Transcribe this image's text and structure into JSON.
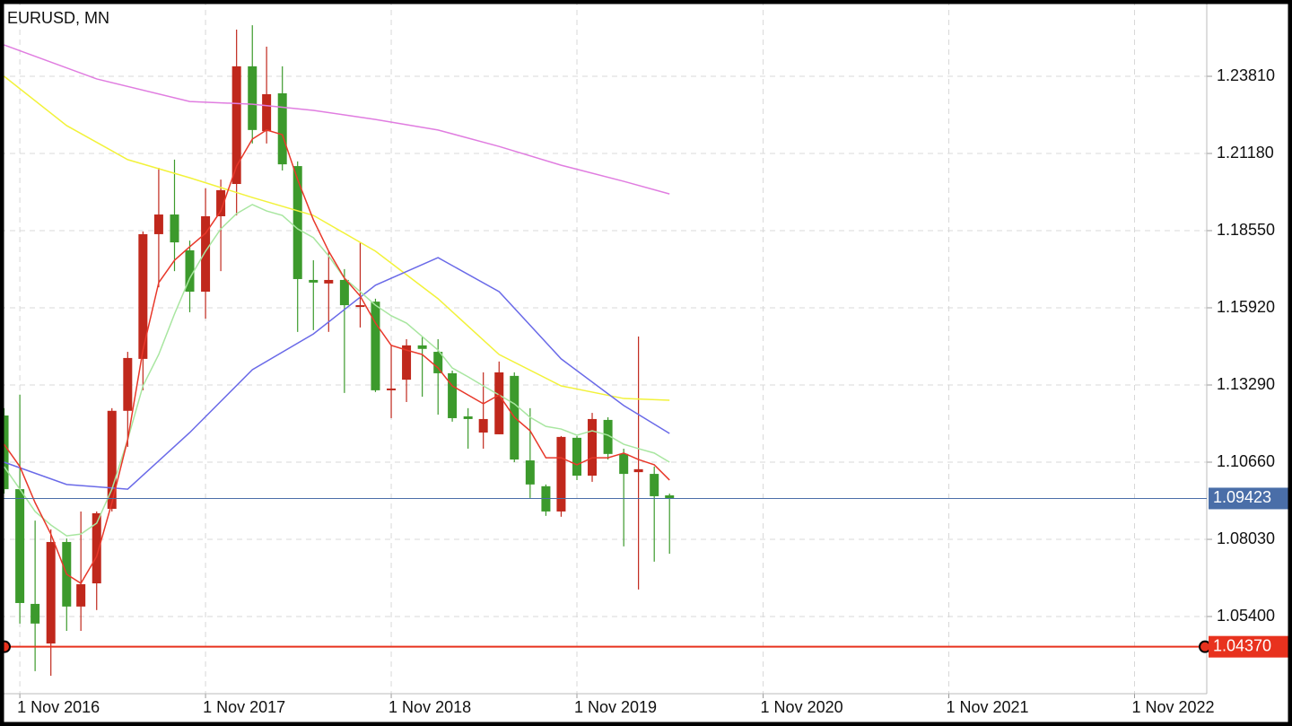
{
  "chart_data": {
    "type": "candlestick",
    "title": "EURUSD, MN",
    "x": [
      "1 Oct 2016",
      "1 Nov 2016",
      "1 Dec 2016",
      "1 Jan 2017",
      "1 Feb 2017",
      "1 Mar 2017",
      "1 Apr 2017",
      "1 May 2017",
      "1 Jun 2017",
      "1 Jul 2017",
      "1 Aug 2017",
      "1 Sep 2017",
      "1 Oct 2017",
      "1 Nov 2017",
      "1 Dec 2017",
      "1 Jan 2018",
      "1 Feb 2018",
      "1 Mar 2018",
      "1 Apr 2018",
      "1 May 2018",
      "1 Jun 2018",
      "1 Jul 2018",
      "1 Aug 2018",
      "1 Sep 2018",
      "1 Oct 2018",
      "1 Nov 2018",
      "1 Dec 2018",
      "1 Jan 2019",
      "1 Feb 2019",
      "1 Mar 2019",
      "1 Apr 2019",
      "1 May 2019",
      "1 Jun 2019",
      "1 Jul 2019",
      "1 Aug 2019",
      "1 Sep 2019",
      "1 Oct 2019",
      "1 Nov 2019",
      "1 Dec 2019",
      "1 Jan 2020",
      "1 Feb 2020",
      "1 Mar 2020",
      "1 Apr 2020",
      "1 May 2020"
    ],
    "open": [
      1.1225,
      1.0974,
      1.0583,
      1.0448,
      1.0794,
      1.0574,
      1.0653,
      1.0907,
      1.1241,
      1.1418,
      1.1843,
      1.191,
      1.1788,
      1.1647,
      1.1904,
      1.2014,
      1.2415,
      1.2194,
      1.2323,
      1.2075,
      1.1687,
      1.1675,
      1.1687,
      1.1595,
      1.1613,
      1.1311,
      1.1347,
      1.1464,
      1.1442,
      1.1369,
      1.1222,
      1.1167,
      1.1161,
      1.136,
      1.1072,
      1.0984,
      1.0898,
      1.1149,
      1.102,
      1.121,
      1.1094,
      1.1032,
      1.1026,
      1.0953
    ],
    "high": [
      1.125,
      1.1296,
      1.0867,
      1.0837,
      1.0806,
      1.0898,
      1.0898,
      1.125,
      1.1442,
      1.1852,
      1.2069,
      1.2097,
      1.1821,
      1.1999,
      1.2029,
      1.254,
      1.2555,
      1.2482,
      1.2415,
      1.2091,
      1.1754,
      1.1785,
      1.1724,
      1.1815,
      1.1623,
      1.1464,
      1.1485,
      1.1494,
      1.1485,
      1.1378,
      1.125,
      1.1372,
      1.1409,
      1.1372,
      1.125,
      1.099,
      1.1155,
      1.1155,
      1.1234,
      1.1219,
      1.1112,
      1.1494,
      1.1051,
      1.0959
    ],
    "low": [
      1.0959,
      1.0516,
      1.0354,
      1.0338,
      1.0491,
      1.0491,
      1.0562,
      1.0898,
      1.1118,
      1.1311,
      1.1662,
      1.1717,
      1.1577,
      1.1555,
      1.1717,
      1.1907,
      1.2152,
      1.2152,
      1.206,
      1.151,
      1.1516,
      1.151,
      1.1302,
      1.1525,
      1.1305,
      1.1216,
      1.1271,
      1.1289,
      1.1228,
      1.1204,
      1.1112,
      1.1112,
      1.1161,
      1.1066,
      1.0944,
      1.0883,
      1.088,
      1.1005,
      1.0999,
      1.1075,
      1.0779,
      1.0632,
      1.0727,
      1.0754
    ],
    "close": [
      1.0974,
      1.0586,
      1.0516,
      1.0794,
      1.0574,
      1.065,
      1.0892,
      1.1241,
      1.1421,
      1.1843,
      1.191,
      1.1815,
      1.1647,
      1.1904,
      1.1993,
      1.2415,
      1.2198,
      1.232,
      1.2081,
      1.169,
      1.1678,
      1.1687,
      1.1601,
      1.1601,
      1.1311,
      1.1317,
      1.1464,
      1.1452,
      1.1369,
      1.1216,
      1.1213,
      1.1213,
      1.1372,
      1.1075,
      1.099,
      1.0898,
      1.1152,
      1.102,
      1.1213,
      1.1094,
      1.1026,
      1.1042,
      1.095,
      1.0941
    ],
    "up_color": "#c0281c",
    "down_color": "#3c9a2c",
    "overlays": [
      {
        "color": "#e07de0",
        "x": [
          "1 Oct 2016",
          "1 Apr 2017",
          "1 Oct 2017",
          "1 Feb 2018",
          "1 Jun 2018",
          "1 Oct 2018",
          "1 Feb 2019",
          "1 Jun 2019",
          "1 Oct 2019",
          "1 Feb 2020",
          "1 May 2020"
        ],
        "values": [
          1.2488,
          1.2372,
          1.2295,
          1.2286,
          1.2265,
          1.2234,
          1.2198,
          1.2142,
          1.2078,
          1.2023,
          1.198
        ]
      },
      {
        "color": "#f2f23a",
        "x": [
          "1 Oct 2016",
          "1 Feb 2017",
          "1 Jun 2017",
          "1 Oct 2017",
          "1 Feb 2018",
          "1 Jun 2018",
          "1 Oct 2018",
          "1 Feb 2019",
          "1 Jun 2019",
          "1 Oct 2019",
          "1 Feb 2020",
          "1 May 2020"
        ],
        "values": [
          1.2381,
          1.2213,
          1.2097,
          1.2035,
          1.1968,
          1.1907,
          1.1785,
          1.1623,
          1.1433,
          1.1326,
          1.1283,
          1.1277
        ]
      },
      {
        "color": "#6a6ae8",
        "x": [
          "1 Oct 2016",
          "1 Feb 2017",
          "1 Jun 2017",
          "1 Oct 2017",
          "1 Feb 2018",
          "1 Jun 2018",
          "1 Oct 2018",
          "1 Feb 2019",
          "1 Jun 2019",
          "1 Oct 2019",
          "1 Feb 2020",
          "1 May 2020"
        ],
        "values": [
          1.1066,
          1.099,
          1.0974,
          1.1167,
          1.1381,
          1.1503,
          1.1669,
          1.1763,
          1.1647,
          1.1418,
          1.1259,
          1.1164
        ]
      },
      {
        "color": "#a8e6a0",
        "values": [
          1.1051,
          1.0974,
          1.0898,
          1.0852,
          1.0815,
          1.0821,
          1.0858,
          1.0974,
          1.1143,
          1.1326,
          1.1433,
          1.1571,
          1.1693,
          1.1785,
          1.1861,
          1.1913,
          1.1944,
          1.1922,
          1.1907,
          1.1861,
          1.1831,
          1.1769,
          1.1693,
          1.1647,
          1.1601,
          1.1565,
          1.154,
          1.1494,
          1.1448,
          1.1387,
          1.1357,
          1.1326,
          1.1295,
          1.1265,
          1.1219,
          1.1188,
          1.1179,
          1.1158,
          1.1173,
          1.1158,
          1.1127,
          1.1112,
          1.1097,
          1.1066
        ]
      },
      {
        "color": "#e8382a",
        "values": [
          1.1127,
          1.1051,
          1.0928,
          1.0821,
          1.0684,
          1.0653,
          1.0745,
          1.0928,
          1.1143,
          1.1448,
          1.1678,
          1.1754,
          1.18,
          1.1846,
          1.1922,
          1.2075,
          1.2167,
          1.2198,
          1.2182,
          1.2029,
          1.1892,
          1.1785,
          1.1693,
          1.1632,
          1.154,
          1.1464,
          1.1448,
          1.1433,
          1.1387,
          1.1326,
          1.1295,
          1.1265,
          1.1295,
          1.1219,
          1.1173,
          1.1081,
          1.1081,
          1.1057,
          1.1081,
          1.1081,
          1.1097,
          1.1075,
          1.1057,
          1.1005
        ]
      }
    ],
    "price_lines": [
      {
        "value": 1.09423,
        "color": "#4a6ea8"
      },
      {
        "value": 1.0437,
        "label": "1.04370",
        "color": "#e8321e"
      }
    ],
    "xlim": [
      "23 Sep 2016",
      "23 Mar 2023"
    ],
    "ylim": [
      1.0277,
      1.2641
    ],
    "xticks": [
      "1 Nov 2016",
      "1 Nov 2017",
      "1 Nov 2018",
      "1 Nov 2019",
      "1 Nov 2020",
      "1 Nov 2021",
      "1 Nov 2022"
    ],
    "yticks": [
      {
        "value": 1.2381,
        "label": "1.23810"
      },
      {
        "value": 1.2118,
        "label": "1.21180"
      },
      {
        "value": 1.1855,
        "label": "1.18550"
      },
      {
        "value": 1.1592,
        "label": "1.15920"
      },
      {
        "value": 1.1329,
        "label": "1.13290"
      },
      {
        "value": 1.1066,
        "label": "1.10660"
      },
      {
        "value": 1.0803,
        "label": "1.08030"
      },
      {
        "value": 1.054,
        "label": "1.05400"
      }
    ],
    "grid": true
  }
}
